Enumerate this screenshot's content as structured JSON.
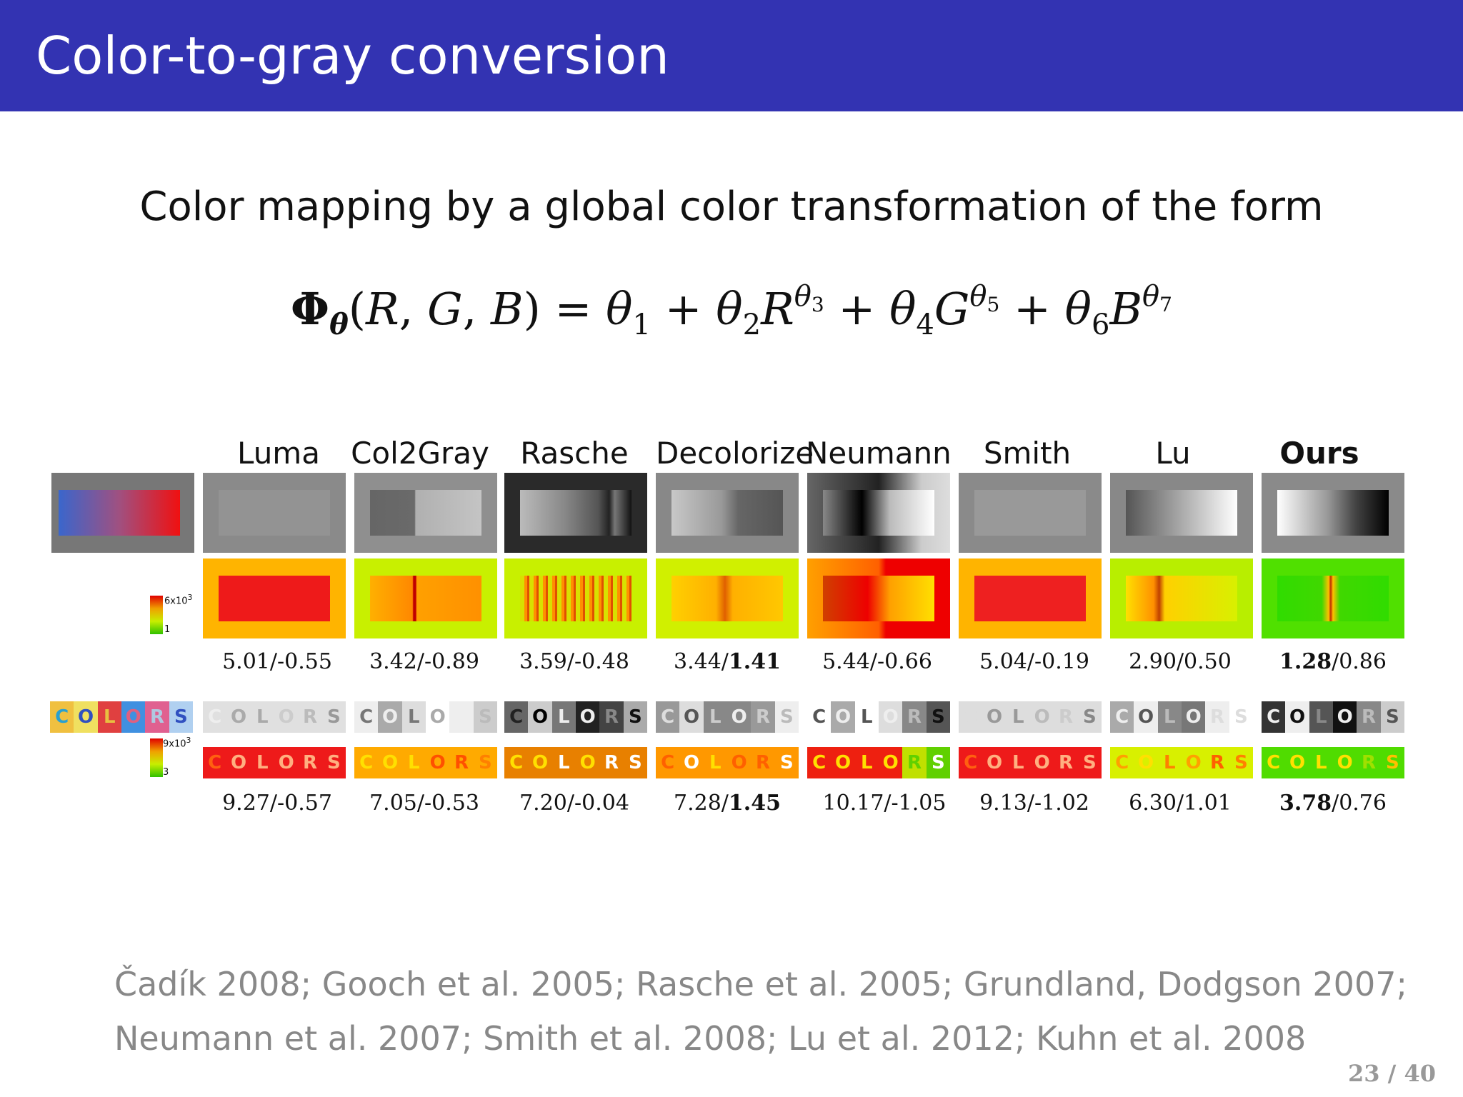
{
  "slide": {
    "title": "Color-to-gray conversion",
    "subtitle": "Color mapping by a global color transformation of the form",
    "page": "23 / 40"
  },
  "methods": [
    "Luma",
    "Col2Gray",
    "Rasche",
    "Decolorize",
    "Neumann",
    "Smith",
    "Lu",
    "Ours"
  ],
  "scores_gradient": [
    {
      "a": "5.01",
      "sep": "/",
      "b": "-0.55",
      "bold": ""
    },
    {
      "a": "3.42",
      "sep": "/",
      "b": "-0.89",
      "bold": ""
    },
    {
      "a": "3.59",
      "sep": "/",
      "b": "-0.48",
      "bold": ""
    },
    {
      "a": "3.44",
      "sep": "/",
      "b": "1.41",
      "bold": "b"
    },
    {
      "a": "5.44",
      "sep": "/",
      "b": "-0.66",
      "bold": ""
    },
    {
      "a": "5.04",
      "sep": "/",
      "b": "-0.19",
      "bold": ""
    },
    {
      "a": "2.90",
      "sep": "/",
      "b": "0.50",
      "bold": ""
    },
    {
      "a": "1.28",
      "sep": "/",
      "b": "0.86",
      "bold": "a"
    }
  ],
  "scores_colors": [
    {
      "a": "9.27",
      "sep": "/",
      "b": "-0.57",
      "bold": ""
    },
    {
      "a": "7.05",
      "sep": "/",
      "b": "-0.53",
      "bold": ""
    },
    {
      "a": "7.20",
      "sep": "/",
      "b": "-0.04",
      "bold": ""
    },
    {
      "a": "7.28",
      "sep": "/",
      "b": "1.45",
      "bold": "b"
    },
    {
      "a": "10.17",
      "sep": "/",
      "b": "-1.05",
      "bold": ""
    },
    {
      "a": "9.13",
      "sep": "/",
      "b": "-1.02",
      "bold": ""
    },
    {
      "a": "6.30",
      "sep": "/",
      "b": "1.01",
      "bold": ""
    },
    {
      "a": "3.78",
      "sep": "/",
      "b": "0.76",
      "bold": "a"
    }
  ],
  "colorbar1": {
    "top": "6x10",
    "exp": "3",
    "bottom": "1"
  },
  "colorbar2": {
    "top": "9x10",
    "exp": "3",
    "bottom": "3"
  },
  "colors_word": [
    "C",
    "O",
    "L",
    "O",
    "R",
    "S"
  ],
  "references": {
    "line1": "Čadík 2008; Gooch et al. 2005; Rasche et al. 2005; Grundland, Dodgson 2007;",
    "line2": "Neumann et al. 2007; Smith et al. 2008; Lu et al. 2012; Kuhn et al. 2008"
  }
}
